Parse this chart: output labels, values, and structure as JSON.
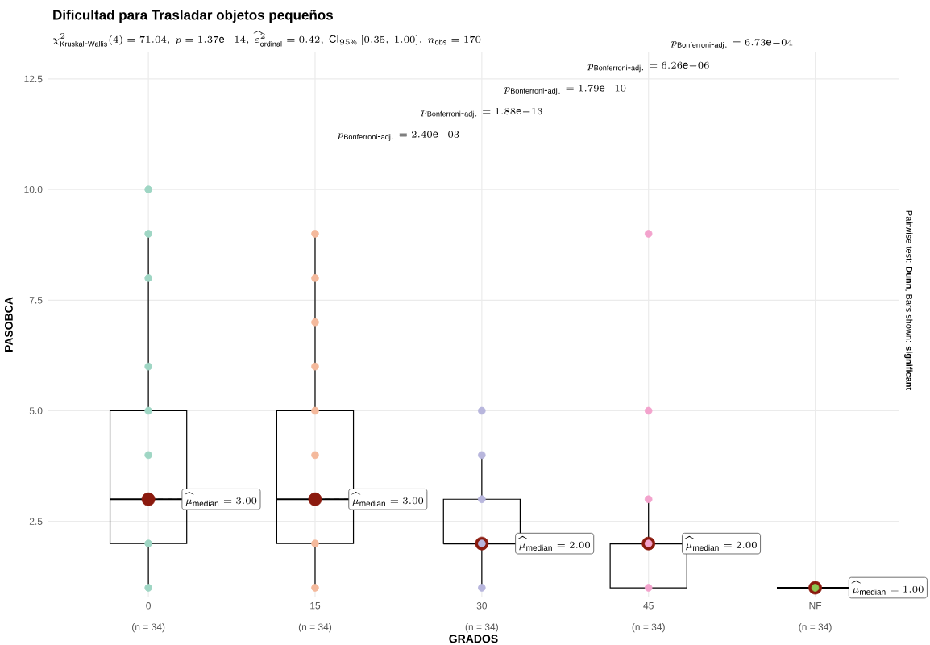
{
  "chart_data": {
    "type": "box",
    "title": "Dificultad para Trasladar objetos pequeños",
    "subtitle": "\\chi^{2}_{\\mathrm{Kruskal\\mbox{-}Wallis}}(4) = 71.04,\\ p = 1.37\\mathrm{e}{-}14,\\ \\widehat{\\varepsilon}^{2}_{\\mathrm{ordinal}} = 0.42,\\ \\mathrm{CI}_{95\\%}\\ [0.35,\\ 1.00],\\ n_{\\mathrm{obs}} = 170",
    "xlabel": "GRADOS",
    "ylabel": "PASOBCA",
    "categories": [
      "0",
      "15",
      "30",
      "45",
      "NF"
    ],
    "ylim": [
      0.8,
      13.1
    ],
    "yticks": [
      2.5,
      {
        "value": 5,
        "label": "5.0"
      },
      {
        "value": 7.5,
        "label": "7.5"
      },
      {
        "value": 10,
        "label": "10.0"
      },
      12.5
    ],
    "grid": true,
    "series": [
      {
        "color": "#000000",
        "boxes": [
          {
            "low": 1,
            "q1": 2,
            "median": 3,
            "q3": 5,
            "high": 9
          },
          {
            "low": 1,
            "q1": 2,
            "median": 3,
            "q3": 5,
            "high": 9
          },
          {
            "low": 1,
            "q1": 2,
            "median": 2,
            "q3": 3,
            "high": 4
          },
          {
            "low": 1,
            "q1": 1,
            "median": 2,
            "q3": 2,
            "high": 3
          },
          {
            "low": 1,
            "q1": 1,
            "median": 1,
            "q3": 1,
            "high": 1
          }
        ]
      },
      {
        "type": "scatter",
        "marker": "circle",
        "color": "#8b1a0e",
        "x": [
          "0",
          "15",
          "30",
          "45",
          "NF"
        ],
        "values": [
          3,
          3,
          2,
          2,
          1
        ]
      },
      {
        "type": "scatter",
        "marker": "circle",
        "color": "#9fd6c4",
        "x": [
          "0",
          "0",
          "0",
          "0",
          "0",
          "0",
          "0",
          "0"
        ],
        "values": [
          10,
          9,
          8,
          6,
          5,
          4,
          2,
          1
        ]
      },
      {
        "type": "scatter",
        "marker": "circle",
        "color": "#f4b99c",
        "x": [
          "15",
          "15",
          "15",
          "15",
          "15",
          "15",
          "15",
          "15"
        ],
        "values": [
          9,
          8,
          7,
          6,
          5,
          4,
          2,
          1
        ]
      },
      {
        "type": "scatter",
        "marker": "circle",
        "color": "#b8b6dd",
        "x": [
          "30",
          "30",
          "30",
          "30",
          "30"
        ],
        "values": [
          5,
          4,
          3,
          2,
          1
        ]
      },
      {
        "type": "scatter",
        "marker": "circle",
        "color": "#f3a3cd",
        "x": [
          "45",
          "45",
          "45",
          "45",
          "45"
        ],
        "values": [
          9,
          5,
          3,
          2,
          1
        ]
      },
      {
        "type": "scatter",
        "marker": "circle",
        "color": "#8cc653",
        "x": [
          "NF"
        ],
        "values": [
          1
        ]
      }
    ],
    "annotations": [
      {
        "text": "\\widehat{\\mu}_{\\mathrm{median}} = 3.00",
        "x": "0",
        "y": 3
      },
      {
        "text": "\\widehat{\\mu}_{\\mathrm{median}} = 3.00",
        "x": "15",
        "y": 3
      },
      {
        "text": "\\widehat{\\mu}_{\\mathrm{median}} = 2.00",
        "x": "30",
        "y": 2
      },
      {
        "text": "\\widehat{\\mu}_{\\mathrm{median}} = 2.00",
        "x": "45",
        "y": 2
      },
      {
        "text": "\\widehat{\\mu}_{\\mathrm{median}} = 1.00",
        "x": "NF",
        "y": 1
      },
      "(n = 34)",
      "(n = 34)",
      "(n = 34)",
      "(n = 34)",
      "(n = 34)",
      "p_{\\mathrm{Bonferroni\\mbox{-}adj.}} = 6.73\\mathrm{e}{-}04",
      "p_{\\mathrm{Bonferroni\\mbox{-}adj.}} = 6.26\\mathrm{e}{-}06",
      "p_{\\mathrm{Bonferroni\\mbox{-}adj.}} = 1.79\\mathrm{e}{-}10",
      "p_{\\mathrm{Bonferroni\\mbox{-}adj.}} = 1.88\\mathrm{e}{-}13",
      "p_{\\mathrm{Bonferroni\\mbox{-}adj.}} = 2.40\\mathrm{e}{-}03",
      "Pairwise test: **Dunn**, Bars shown: **significant**"
    ]
  }
}
